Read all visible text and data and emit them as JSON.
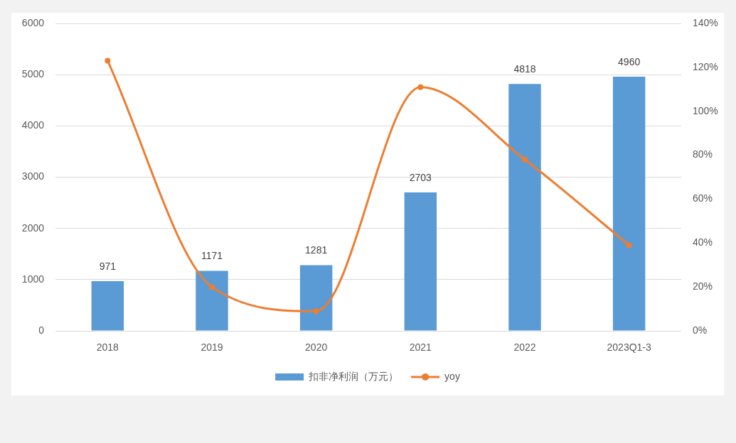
{
  "chart_data": {
    "type": "bar",
    "categories": [
      "2018",
      "2019",
      "2020",
      "2021",
      "2022",
      "2023Q1-3"
    ],
    "series": [
      {
        "name": "扣非净利润（万元）",
        "color": "#5b9bd5",
        "values": [
          971,
          1171,
          1281,
          2703,
          4818,
          4960
        ],
        "value_labels": [
          "971",
          "1171",
          "1281",
          "2703",
          "4818",
          "4960"
        ]
      },
      {
        "name": "yoy",
        "type": "line",
        "axis": "y2",
        "color": "#ed7d31",
        "values": [
          123,
          20,
          9,
          111,
          78,
          39
        ]
      }
    ],
    "ylim": [
      0,
      6000
    ],
    "yticks": [
      0,
      1000,
      2000,
      3000,
      4000,
      5000,
      6000
    ],
    "y2lim": [
      0,
      140
    ],
    "y2ticks": [
      {
        "value": 0,
        "label": "0%"
      },
      {
        "value": 20,
        "label": "20%"
      },
      {
        "value": 40,
        "label": "40%"
      },
      {
        "value": 60,
        "label": "60%"
      },
      {
        "value": 80,
        "label": "80%"
      },
      {
        "value": 100,
        "label": "100%"
      },
      {
        "value": 120,
        "label": "120%"
      },
      {
        "value": 140,
        "label": "140%"
      }
    ],
    "grid": "y",
    "legend": "bottom",
    "marker": "circle",
    "line_style": "solid"
  }
}
